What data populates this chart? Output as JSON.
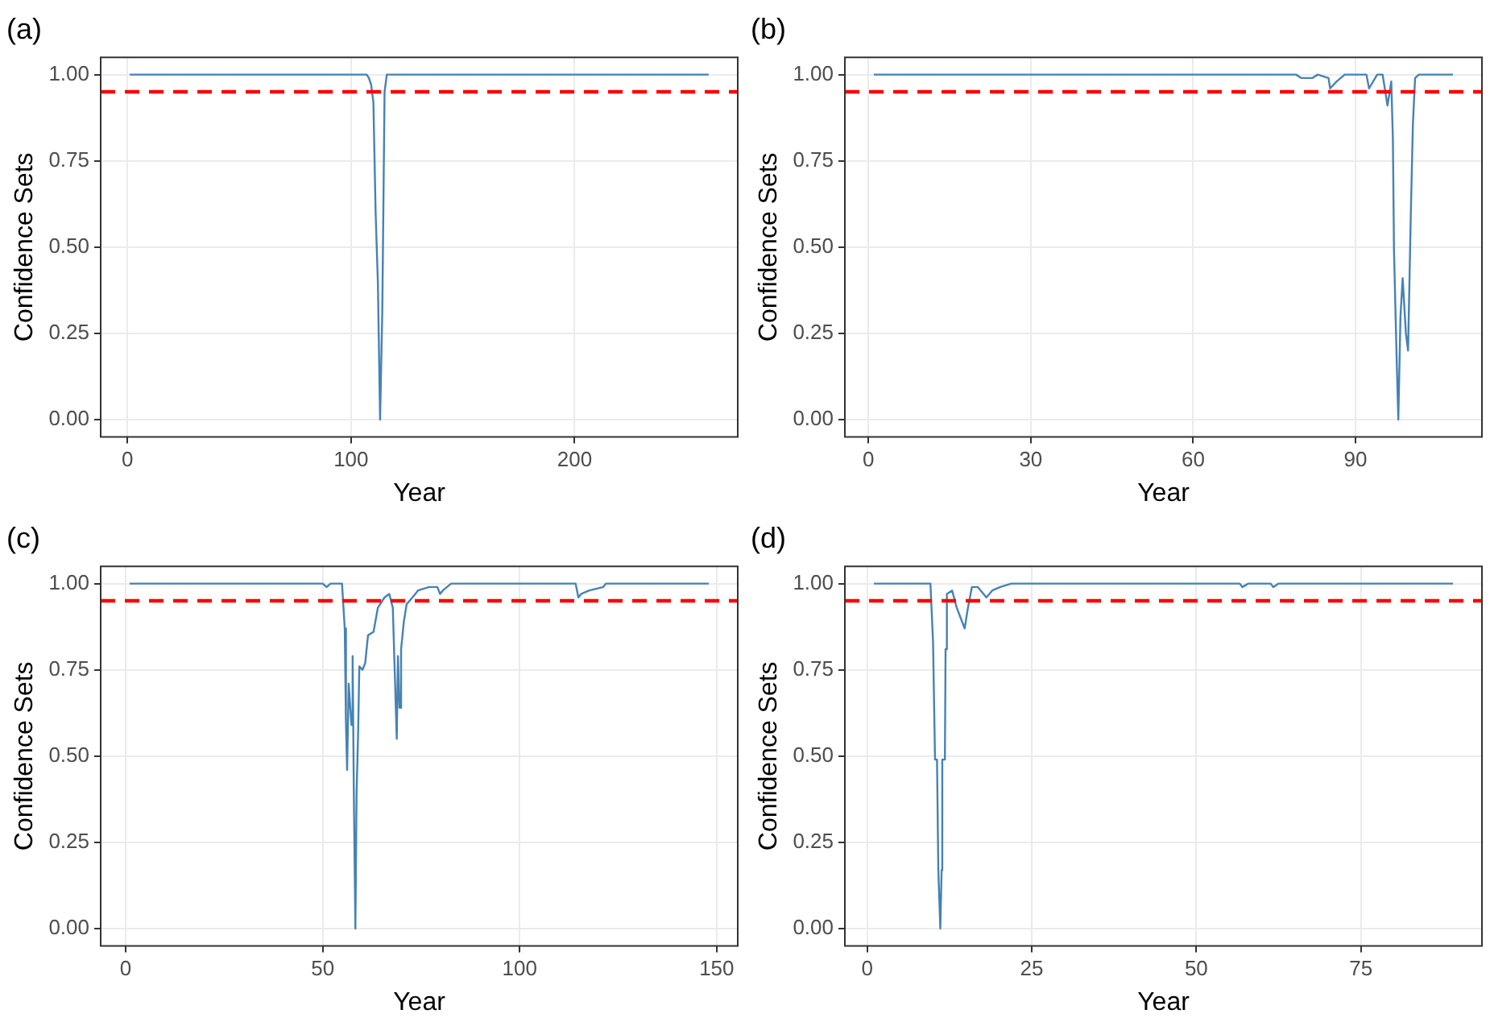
{
  "chart_data": [
    {
      "type": "line",
      "title": "(a)",
      "xlabel": "Year",
      "ylabel": "Confidence Sets",
      "color": "#4682b4",
      "marker": "none",
      "grid": true,
      "x": [
        1,
        107,
        108,
        109,
        110,
        111,
        112,
        113,
        114,
        115,
        116,
        260
      ],
      "values": [
        1,
        1,
        0.99,
        0.97,
        0.92,
        0.6,
        0.4,
        0,
        0.32,
        0.95,
        1,
        1
      ],
      "xlim": [
        -12,
        273
      ],
      "xticks": [
        0,
        100,
        200
      ],
      "ylim": [
        -0.05,
        1.05
      ],
      "yticks": [
        {
          "value": 0,
          "label": "0.00"
        },
        {
          "value": 0.25,
          "label": "0.25"
        },
        {
          "value": 0.5,
          "label": "0.50"
        },
        {
          "value": 0.75,
          "label": "0.75"
        },
        {
          "value": 1,
          "label": "1.00"
        }
      ],
      "ref_lines": [
        {
          "axis": "y",
          "value": 0.95,
          "color": "#ff0000",
          "line_style": "dashed"
        }
      ]
    },
    {
      "type": "line",
      "title": "(b)",
      "xlabel": "Year",
      "ylabel": "Confidence Sets",
      "color": "#4682b4",
      "marker": "none",
      "grid": true,
      "x": [
        1,
        79,
        80,
        82,
        83,
        85,
        85.3,
        86.5,
        88,
        92,
        92.5,
        94,
        95,
        95.9,
        96.6,
        96.9,
        97.1,
        97.6,
        97.9,
        98.3,
        98.7,
        99.3,
        99.7,
        100.2,
        100.6,
        101.0,
        101.7,
        108
      ],
      "values": [
        1,
        1,
        0.99,
        0.99,
        1,
        0.99,
        0.96,
        0.98,
        1,
        1,
        0.96,
        1,
        1,
        0.91,
        0.98,
        0.81,
        0.49,
        0.17,
        0,
        0.3,
        0.41,
        0.25,
        0.2,
        0.59,
        0.86,
        0.99,
        1,
        1
      ],
      "xlim": [
        -4.35,
        113.35
      ],
      "xticks": [
        0,
        30,
        60,
        90
      ],
      "ylim": [
        -0.05,
        1.05
      ],
      "yticks": [
        {
          "value": 0,
          "label": "0.00"
        },
        {
          "value": 0.25,
          "label": "0.25"
        },
        {
          "value": 0.5,
          "label": "0.50"
        },
        {
          "value": 0.75,
          "label": "0.75"
        },
        {
          "value": 1,
          "label": "1.00"
        }
      ],
      "ref_lines": [
        {
          "axis": "y",
          "value": 0.95,
          "color": "#ff0000",
          "line_style": "dashed"
        }
      ]
    },
    {
      "type": "line",
      "title": "(c)",
      "xlabel": "Year",
      "ylabel": "Confidence Sets",
      "color": "#4682b4",
      "marker": "none",
      "grid": true,
      "x": [
        1,
        50,
        51,
        52,
        54.9,
        55.6,
        55.9,
        56.2,
        56.6,
        57.3,
        57.6,
        57.9,
        58.1,
        58.3,
        58.6,
        59.0,
        59.3,
        60.1,
        60.8,
        61.5,
        62.9,
        64.0,
        65.7,
        66.9,
        67.8,
        68.3,
        68.8,
        69.1,
        69.5,
        69.9,
        70.6,
        71.3,
        72.8,
        74.2,
        77.0,
        79.1,
        79.8,
        80.5,
        82.6,
        84.0,
        114.2,
        114.9,
        115.6,
        117.7,
        121.2,
        121.9,
        148
      ],
      "values": [
        1,
        1,
        0.99,
        1,
        1,
        0.87,
        0.6,
        0.46,
        0.71,
        0.59,
        0.79,
        0.4,
        0.2,
        0,
        0.39,
        0.57,
        0.76,
        0.75,
        0.77,
        0.85,
        0.86,
        0.93,
        0.96,
        0.97,
        0.93,
        0.74,
        0.55,
        0.79,
        0.64,
        0.81,
        0.89,
        0.94,
        0.96,
        0.98,
        0.99,
        0.99,
        0.97,
        0.98,
        1,
        1,
        1,
        0.96,
        0.97,
        0.98,
        0.99,
        1,
        1
      ],
      "xlim": [
        -6.35,
        155.35
      ],
      "xticks": [
        0,
        50,
        100,
        150
      ],
      "ylim": [
        -0.05,
        1.05
      ],
      "yticks": [
        {
          "value": 0,
          "label": "0.00"
        },
        {
          "value": 0.25,
          "label": "0.25"
        },
        {
          "value": 0.5,
          "label": "0.50"
        },
        {
          "value": 0.75,
          "label": "0.75"
        },
        {
          "value": 1,
          "label": "1.00"
        }
      ],
      "ref_lines": [
        {
          "axis": "y",
          "value": 0.95,
          "color": "#ff0000",
          "line_style": "dashed"
        }
      ]
    },
    {
      "type": "line",
      "title": "(d)",
      "xlabel": "Year",
      "ylabel": "Confidence Sets",
      "color": "#4682b4",
      "marker": "none",
      "grid": true,
      "x": [
        1,
        9,
        9.6,
        10.0,
        10.3,
        10.6,
        10.8,
        11.1,
        11.3,
        11.4,
        11.8,
        11.9,
        12.1,
        12.9,
        13.6,
        14.2,
        14.8,
        15.3,
        15.9,
        16.8,
        18.1,
        19.0,
        20.2,
        21.9,
        56.6,
        57.0,
        57.9,
        61.3,
        61.7,
        62.5,
        89
      ],
      "values": [
        1,
        1,
        1,
        0.83,
        0.49,
        0.49,
        0.17,
        0,
        0.17,
        0.49,
        0.49,
        0.81,
        0.97,
        0.98,
        0.93,
        0.9,
        0.87,
        0.93,
        0.99,
        0.99,
        0.96,
        0.98,
        0.99,
        1,
        1,
        0.99,
        1,
        1,
        0.99,
        1,
        1
      ],
      "xlim": [
        -3.4,
        93.4
      ],
      "xticks": [
        0,
        25,
        50,
        75
      ],
      "ylim": [
        -0.05,
        1.05
      ],
      "yticks": [
        {
          "value": 0,
          "label": "0.00"
        },
        {
          "value": 0.25,
          "label": "0.25"
        },
        {
          "value": 0.5,
          "label": "0.50"
        },
        {
          "value": 0.75,
          "label": "0.75"
        },
        {
          "value": 1,
          "label": "1.00"
        }
      ],
      "ref_lines": [
        {
          "axis": "y",
          "value": 0.95,
          "color": "#ff0000",
          "line_style": "dashed"
        }
      ]
    }
  ]
}
